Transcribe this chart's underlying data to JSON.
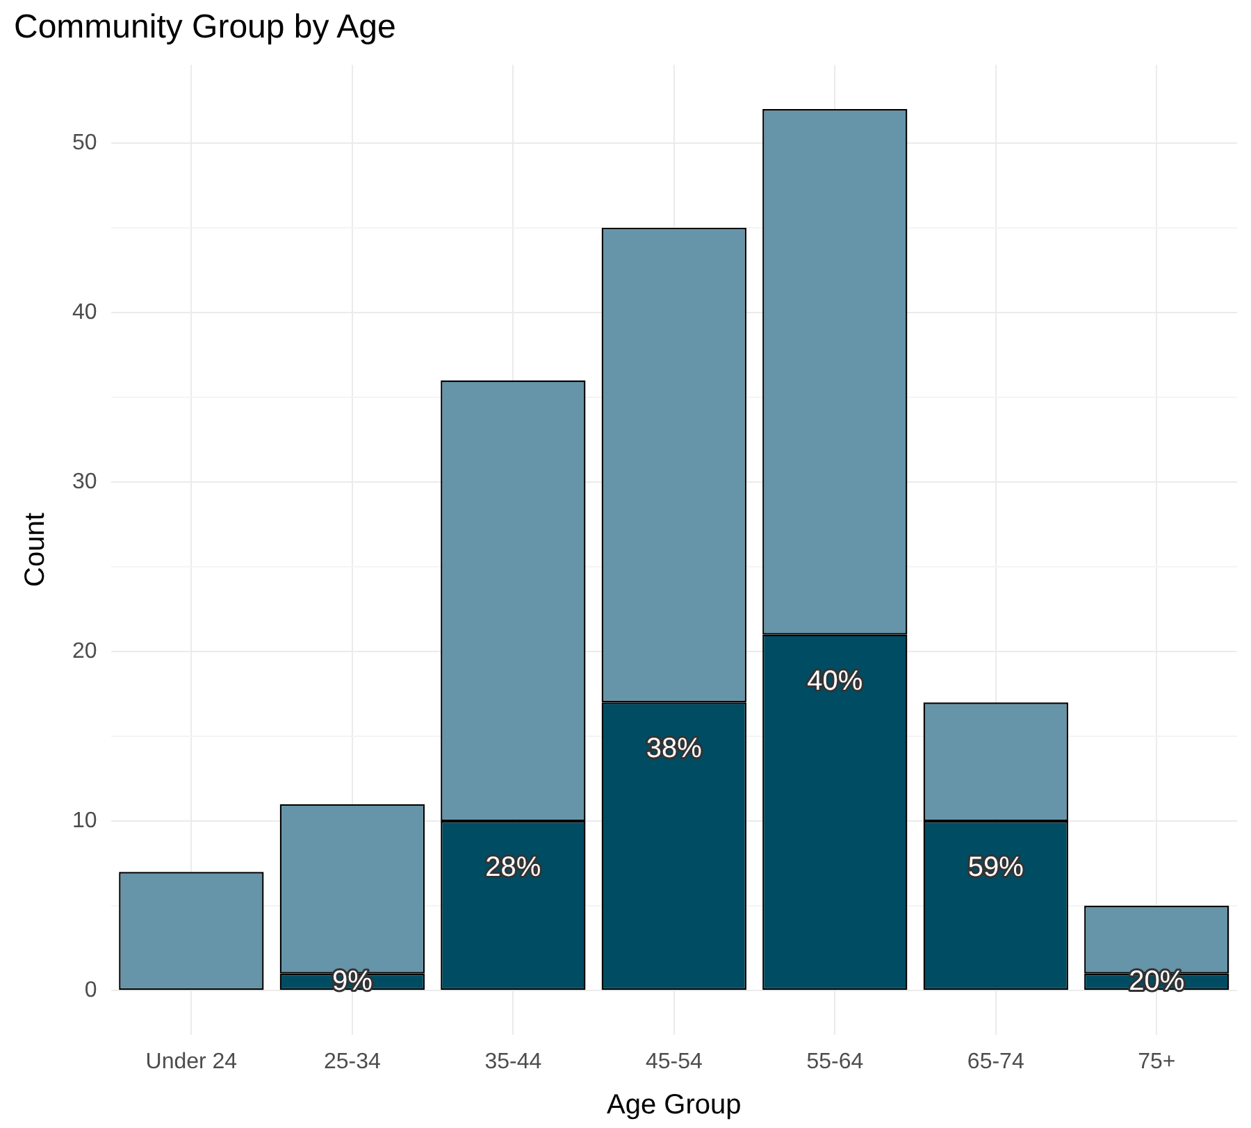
{
  "chart_data": {
    "type": "bar",
    "title": "Community Group by Age",
    "xlabel": "Age Group",
    "ylabel": "Count",
    "categories": [
      "Under 24",
      "25-34",
      "35-44",
      "45-54",
      "55-64",
      "65-74",
      "75+"
    ],
    "stacked": true,
    "series": [
      {
        "color": "#004c63",
        "values": [
          0,
          1,
          10,
          17,
          21,
          10,
          1
        ]
      },
      {
        "color": "#6694a8",
        "values": [
          7,
          10,
          26,
          28,
          31,
          7,
          4
        ]
      }
    ],
    "ylim": [
      -2.6,
      54.6
    ],
    "yticks": [
      0,
      {
        "value": 5,
        "label": null
      },
      10,
      {
        "value": 15,
        "label": null
      },
      20,
      {
        "value": 25,
        "label": null
      },
      30,
      {
        "value": 35,
        "label": null
      },
      40,
      {
        "value": 45,
        "label": null
      },
      50
    ],
    "annotations": [
      {
        "text": "9%",
        "x": "25-34",
        "y": 1
      },
      {
        "text": "28%",
        "x": "35-44",
        "y": 10
      },
      {
        "text": "38%",
        "x": "45-54",
        "y": 17
      },
      {
        "text": "40%",
        "x": "55-64",
        "y": 21
      },
      {
        "text": "59%",
        "x": "65-74",
        "y": 10
      },
      {
        "text": "20%",
        "x": "75+",
        "y": 1
      }
    ],
    "grid": true,
    "legend": false
  }
}
